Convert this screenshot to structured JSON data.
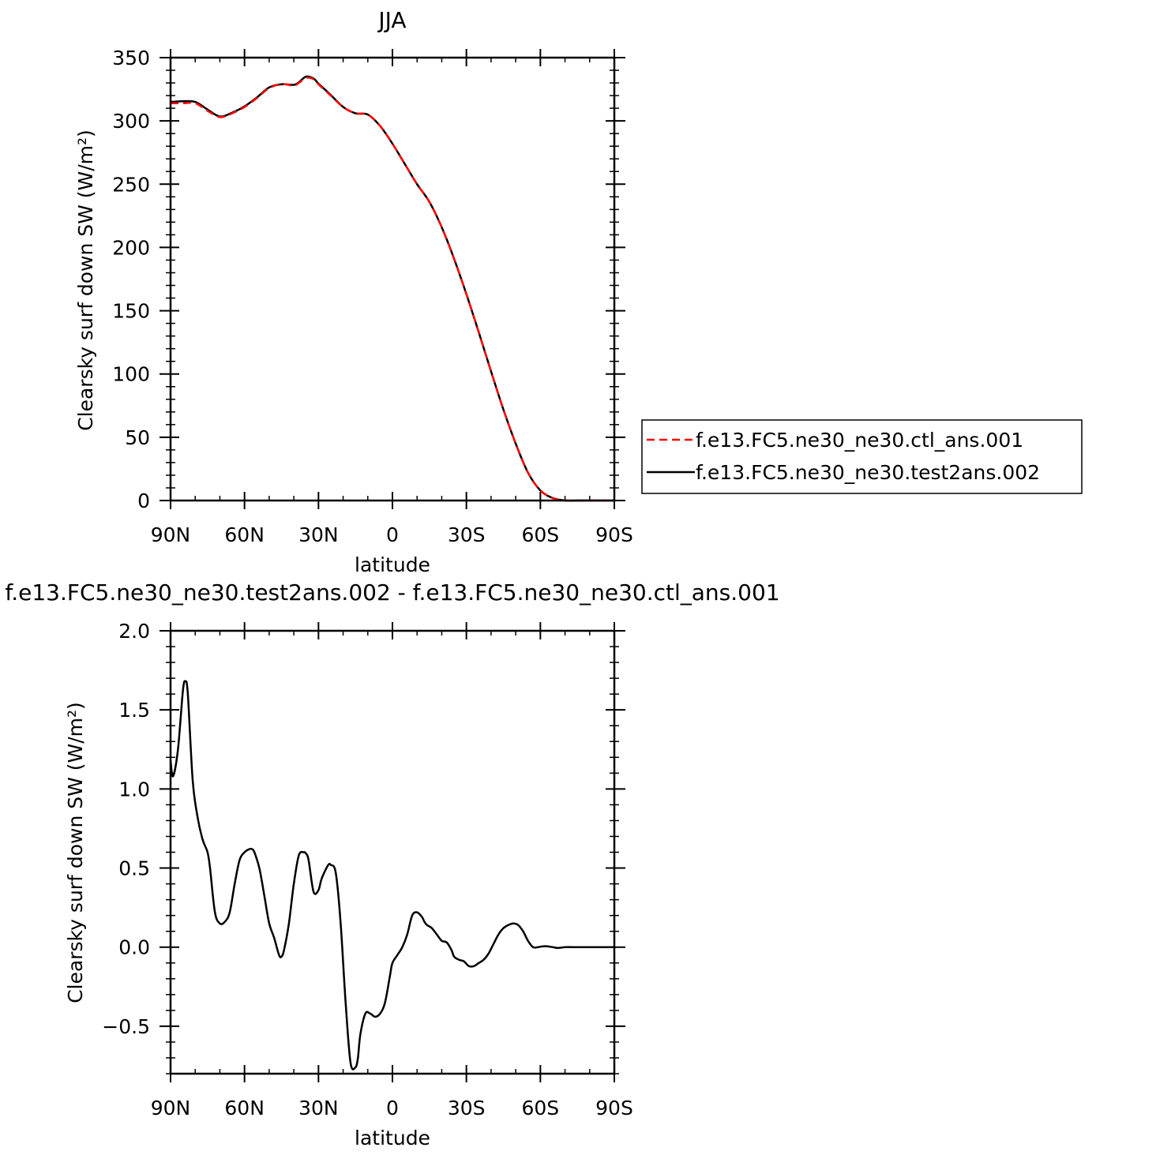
{
  "chart_data": [
    {
      "type": "line",
      "title": "JJA",
      "xlabel": "latitude",
      "ylabel": "Clearsky surf down SW (W/m²)",
      "xlim": [
        90,
        -90
      ],
      "ylim": [
        0,
        350
      ],
      "x_ticks": [
        {
          "value": 90,
          "label": "90N"
        },
        {
          "value": 60,
          "label": "60N"
        },
        {
          "value": 30,
          "label": "30N"
        },
        {
          "value": 0,
          "label": "0"
        },
        {
          "value": -30,
          "label": "30S"
        },
        {
          "value": -60,
          "label": "60S"
        },
        {
          "value": -90,
          "label": "90S"
        }
      ],
      "y_ticks": [
        {
          "value": 0,
          "label": "0"
        },
        {
          "value": 50,
          "label": "50"
        },
        {
          "value": 100,
          "label": "100"
        },
        {
          "value": 150,
          "label": "150"
        },
        {
          "value": 200,
          "label": "200"
        },
        {
          "value": 250,
          "label": "250"
        },
        {
          "value": 300,
          "label": "300"
        },
        {
          "value": 350,
          "label": "350"
        }
      ],
      "legend": {
        "position": "right"
      },
      "series": [
        {
          "name": "f.e13.FC5.ne30_ne30.ctl_ans.001",
          "color": "#ff0000",
          "dash": true,
          "x": [
            90,
            85,
            80,
            75,
            70,
            65,
            60,
            55,
            50,
            45,
            40,
            38,
            35,
            32,
            30,
            25,
            20,
            15,
            10,
            5,
            0,
            -5,
            -10,
            -15,
            -20,
            -25,
            -30,
            -35,
            -40,
            -45,
            -50,
            -55,
            -60,
            -65,
            -70,
            -75,
            -80,
            -85,
            -90
          ],
          "y": [
            314,
            314,
            314,
            308,
            303,
            306,
            311,
            318,
            326,
            329,
            328,
            330,
            334,
            333,
            329,
            320,
            311,
            306,
            305,
            296,
            282,
            266,
            250,
            236,
            216,
            191,
            163,
            133,
            102,
            72,
            45,
            22,
            8,
            2,
            0,
            0,
            0,
            0,
            0
          ]
        },
        {
          "name": "f.e13.FC5.ne30_ne30.test2ans.002",
          "color": "#000000",
          "dash": false,
          "x": [
            90,
            85,
            80,
            75,
            70,
            65,
            60,
            55,
            50,
            45,
            40,
            38,
            35,
            32,
            30,
            25,
            20,
            15,
            10,
            5,
            0,
            -5,
            -10,
            -15,
            -20,
            -25,
            -30,
            -35,
            -40,
            -45,
            -50,
            -55,
            -60,
            -65,
            -70,
            -75,
            -80,
            -85,
            -90
          ],
          "y": [
            315,
            315.5,
            315,
            309,
            303.5,
            306.5,
            311.5,
            318.5,
            326.5,
            329,
            328.5,
            330.5,
            335,
            333.5,
            329.5,
            320.5,
            311,
            306,
            305,
            296,
            282,
            266,
            250,
            236,
            216,
            191,
            163,
            133,
            102,
            72,
            45,
            22,
            8,
            2,
            0,
            0,
            0,
            0,
            0
          ]
        }
      ]
    },
    {
      "type": "line",
      "title": "f.e13.FC5.ne30_ne30.test2ans.002 - f.e13.FC5.ne30_ne30.ctl_ans.001",
      "xlabel": "latitude",
      "ylabel": "Clearsky surf down SW (W/m²)",
      "xlim": [
        90,
        -90
      ],
      "ylim": [
        -0.8,
        2.0
      ],
      "x_ticks": [
        {
          "value": 90,
          "label": "90N"
        },
        {
          "value": 60,
          "label": "60N"
        },
        {
          "value": 30,
          "label": "30N"
        },
        {
          "value": 0,
          "label": "0"
        },
        {
          "value": -30,
          "label": "30S"
        },
        {
          "value": -60,
          "label": "60S"
        },
        {
          "value": -90,
          "label": "90S"
        }
      ],
      "y_ticks": [
        {
          "value": -0.5,
          "label": "−0.5"
        },
        {
          "value": 0,
          "label": "0.0"
        },
        {
          "value": 0.5,
          "label": "0.5"
        },
        {
          "value": 1.0,
          "label": "1.0"
        },
        {
          "value": 1.5,
          "label": "1.5"
        },
        {
          "value": 2.0,
          "label": "2.0"
        }
      ],
      "series": [
        {
          "color": "#000000",
          "x": [
            90,
            89,
            87,
            85,
            84,
            83,
            81,
            79,
            77,
            75,
            74,
            72,
            70,
            68,
            66,
            64,
            62,
            60,
            58,
            57,
            56,
            54,
            52,
            50,
            48,
            46,
            45,
            44,
            42,
            40,
            38,
            36,
            35,
            34,
            32,
            30,
            29,
            28,
            26,
            25,
            23,
            21,
            19,
            17,
            15,
            14,
            13,
            11,
            9,
            7,
            5,
            3,
            1,
            0,
            -2,
            -4,
            -6,
            -8,
            -10,
            -12,
            -13,
            -14,
            -16,
            -18,
            -20,
            -22,
            -24,
            -25,
            -27,
            -29,
            -31,
            -33,
            -35,
            -37,
            -39,
            -41,
            -43,
            -45,
            -47,
            -49,
            -51,
            -53,
            -55,
            -57,
            -59,
            -61,
            -63,
            -65,
            -67,
            -70,
            -73,
            -76,
            -80,
            -85,
            -90
          ],
          "y": [
            1.18,
            1.08,
            1.25,
            1.62,
            1.68,
            1.6,
            1.05,
            0.82,
            0.68,
            0.6,
            0.5,
            0.22,
            0.15,
            0.16,
            0.22,
            0.4,
            0.55,
            0.6,
            0.62,
            0.62,
            0.6,
            0.5,
            0.33,
            0.15,
            0.06,
            -0.05,
            -0.06,
            -0.02,
            0.15,
            0.4,
            0.58,
            0.6,
            0.59,
            0.55,
            0.35,
            0.36,
            0.42,
            0.46,
            0.52,
            0.52,
            0.47,
            0.15,
            -0.35,
            -0.73,
            -0.76,
            -0.7,
            -0.55,
            -0.42,
            -0.42,
            -0.44,
            -0.42,
            -0.35,
            -0.18,
            -0.1,
            -0.05,
            0.0,
            0.08,
            0.2,
            0.22,
            0.19,
            0.16,
            0.14,
            0.12,
            0.08,
            0.04,
            0.03,
            -0.02,
            -0.06,
            -0.08,
            -0.09,
            -0.12,
            -0.12,
            -0.1,
            -0.08,
            -0.04,
            0.02,
            0.08,
            0.12,
            0.14,
            0.15,
            0.14,
            0.1,
            0.04,
            0.0,
            0.0,
            0.005,
            0.005,
            0.0,
            -0.005,
            0.0,
            0.0,
            0.0,
            0.0,
            0.0,
            0.0
          ]
        }
      ]
    }
  ]
}
